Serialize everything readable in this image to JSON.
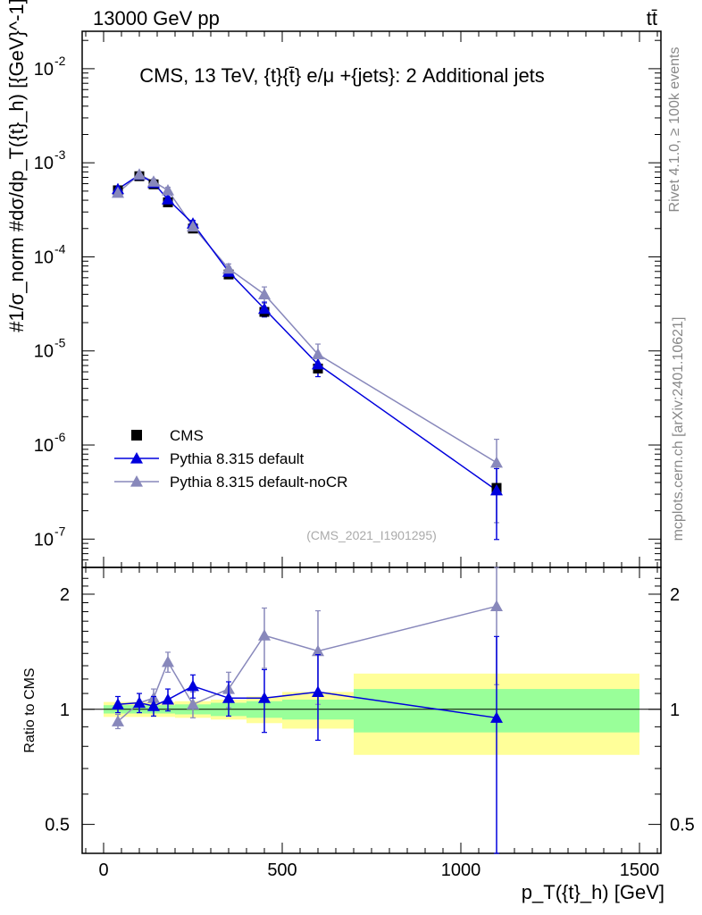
{
  "header": {
    "left": "13000 GeV pp",
    "right": "tt̄"
  },
  "side_labels": {
    "rivet": "Rivet 4.1.0, ≥ 100k events",
    "mcplots": "mcplots.cern.ch [arXiv:2401.10621]"
  },
  "chart_data": {
    "type": "line",
    "title": "CMS, 13 TeV, {t}{t̄} e/μ +{jets}: 2 Additional jets",
    "analysis_id": "(CMS_2021_I1901295)",
    "xlabel": "p_T({t}_h) [GeV]",
    "ylabel": "#1/σ_norm #dσ/dp_T({t}_h) [{GeV}^-1]",
    "ratio_ylabel": "Ratio to CMS",
    "xlim": [
      -60,
      1560
    ],
    "ylim": [
      5e-08,
      0.025
    ],
    "ratio_ylim": [
      0.42,
      2.35
    ],
    "x_ticks": [
      0,
      500,
      1000,
      1500
    ],
    "y_ticks": [
      "10^-7",
      "10^-6",
      "10^-5",
      "10^-4",
      "10^-3",
      "10^-2"
    ],
    "ratio_ticks": [
      "0.5",
      "1",
      "2"
    ],
    "legend": [
      "CMS",
      "Pythia 8.315 default",
      "Pythia 8.315 default-noCR"
    ],
    "colors": {
      "data": "#000000",
      "default": "#0000dd",
      "nocr": "#8888bb",
      "band_inner": "#99ff99",
      "band_outer": "#ffff99"
    },
    "data_bins": [
      {
        "lo": 0,
        "hi": 80,
        "x": 40,
        "y": 0.00051,
        "ratio_band_inner": 0.025,
        "ratio_band_outer": 0.045
      },
      {
        "lo": 80,
        "hi": 120,
        "x": 100,
        "y": 0.00072,
        "ratio_band_inner": 0.025,
        "ratio_band_outer": 0.045
      },
      {
        "lo": 120,
        "hi": 160,
        "x": 140,
        "y": 0.00059,
        "ratio_band_inner": 0.025,
        "ratio_band_outer": 0.045
      },
      {
        "lo": 160,
        "hi": 200,
        "x": 180,
        "y": 0.00038,
        "ratio_band_inner": 0.025,
        "ratio_band_outer": 0.045
      },
      {
        "lo": 200,
        "hi": 300,
        "x": 250,
        "y": 0.0002,
        "ratio_band_inner": 0.03,
        "ratio_band_outer": 0.05
      },
      {
        "lo": 300,
        "hi": 400,
        "x": 350,
        "y": 6.5e-05,
        "ratio_band_inner": 0.04,
        "ratio_band_outer": 0.06
      },
      {
        "lo": 400,
        "hi": 500,
        "x": 450,
        "y": 2.6e-05,
        "ratio_band_inner": 0.05,
        "ratio_band_outer": 0.08
      },
      {
        "lo": 500,
        "hi": 700,
        "x": 600,
        "y": 6.5e-06,
        "ratio_band_inner": 0.06,
        "ratio_band_outer": 0.11
      },
      {
        "lo": 700,
        "hi": 1500,
        "x": 1100,
        "y": 3.5e-07,
        "ratio_band_inner": 0.13,
        "ratio_band_outer": 0.24
      }
    ],
    "series": [
      {
        "name": "Pythia 8.315 default",
        "x": [
          40,
          100,
          140,
          180,
          250,
          350,
          450,
          600,
          1100
        ],
        "y": [
          0.000525,
          0.000745,
          0.00061,
          0.000408,
          0.000226,
          6.95e-05,
          2.8e-05,
          7.2e-06,
          3.3e-07
        ],
        "ratio": [
          1.03,
          1.04,
          1.02,
          1.06,
          1.15,
          1.07,
          1.07,
          1.11,
          0.95
        ],
        "ratio_err": [
          0.05,
          0.06,
          0.06,
          0.07,
          0.08,
          0.11,
          0.2,
          0.28,
          0.6
        ]
      },
      {
        "name": "Pythia 8.315 default-noCR",
        "x": [
          40,
          100,
          140,
          180,
          250,
          350,
          450,
          600,
          1100
        ],
        "y": [
          0.00048,
          0.00075,
          0.00063,
          0.00051,
          0.00021,
          7.5e-05,
          4e-05,
          9.2e-06,
          6.5e-07
        ],
        "ratio": [
          0.93,
          1.04,
          1.07,
          1.33,
          1.03,
          1.13,
          1.56,
          1.42,
          1.86
        ],
        "ratio_err": [
          0.04,
          0.06,
          0.06,
          0.08,
          0.08,
          0.12,
          0.28,
          0.39,
          0.7
        ]
      }
    ]
  }
}
